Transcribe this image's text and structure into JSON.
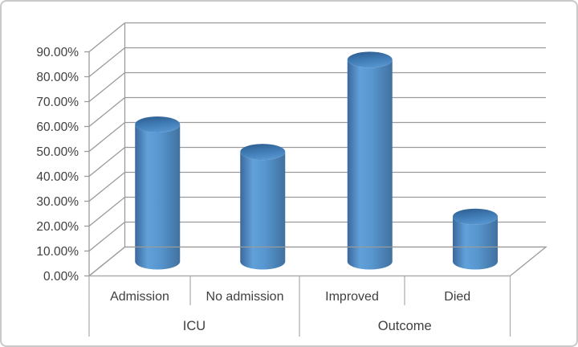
{
  "window": {
    "title": ""
  },
  "colors": {
    "bar_accent": "#5B9BD5",
    "bar_dark": "#3B689C",
    "bar_light": "#5F9ED8",
    "top_rim_dark": "#315F91",
    "top_face": "#4E8AC4",
    "grid_line": "#9b9b9b",
    "table_line": "#ababab",
    "text": "#3f3f3f",
    "frame_border": "#c9c9c9",
    "background": "#ffffff"
  },
  "chart_data": {
    "type": "bar",
    "style": "3d-cylinder",
    "title": "",
    "xlabel": "",
    "ylabel": "",
    "categories": [
      "Admission",
      "No admission",
      "Improved",
      "Died"
    ],
    "values": [
      55,
      44,
      81,
      18
    ],
    "unit": "%",
    "series": [
      {
        "name": "",
        "values": [
          55,
          44,
          81,
          18
        ]
      }
    ],
    "category_groups": [
      {
        "label": "ICU",
        "categories": [
          "Admission",
          "No admission"
        ]
      },
      {
        "label": "Outcome",
        "categories": [
          "Improved",
          "Died"
        ]
      }
    ],
    "y_ticks": [
      "0.00%",
      "10.00%",
      "20.00%",
      "30.00%",
      "40.00%",
      "50.00%",
      "60.00%",
      "70.00%",
      "80.00%",
      "90.00%"
    ],
    "ylim": [
      0,
      90
    ],
    "y_step": 10,
    "grid": true,
    "legend": false,
    "data_labels": false
  }
}
